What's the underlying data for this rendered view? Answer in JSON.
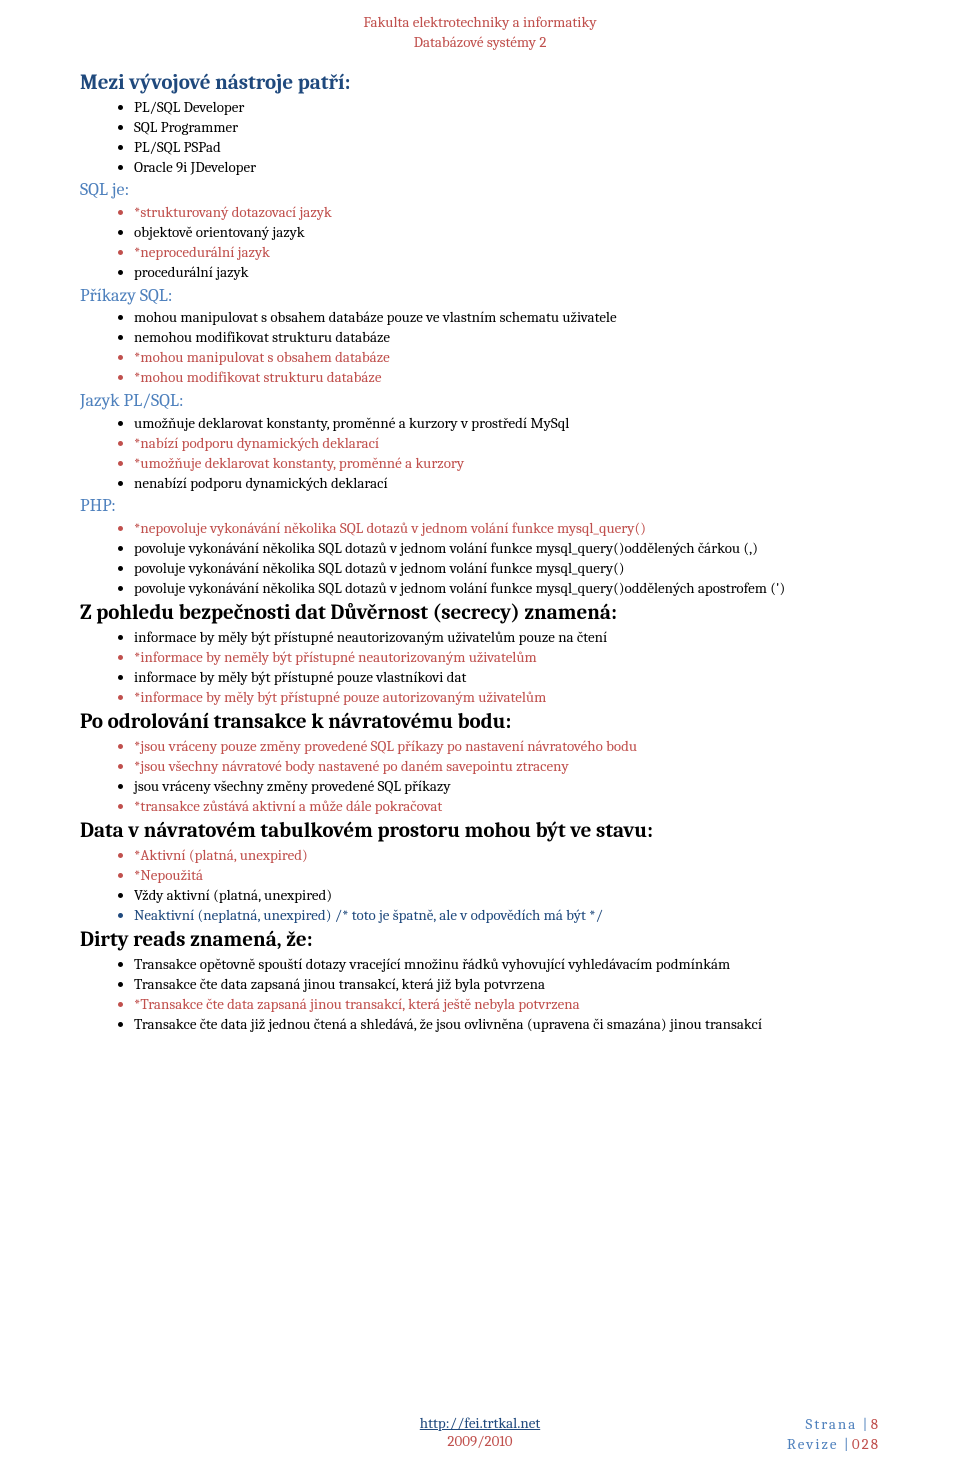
{
  "header": {
    "line1": "Fakulta elektrotechniky a informatiky",
    "line2": "Databázové systémy 2"
  },
  "colors": {
    "red": "#c0504d",
    "blue_dark": "#1f497d",
    "blue_mid": "#4f81bd",
    "text": "#000000",
    "bg": "#ffffff"
  },
  "typography": {
    "body_fontsize_pt": 11,
    "heading_fontsize_pt": 16,
    "font_family": "Cambria"
  },
  "sections": [
    {
      "id": "s1",
      "heading": "Mezi vývojové nástroje patří:",
      "style": "h-blue",
      "items": [
        {
          "text": "PL/SQL Developer",
          "cls": ""
        },
        {
          "text": "SQL Programmer",
          "cls": ""
        },
        {
          "text": "PL/SQL PSPad",
          "cls": ""
        },
        {
          "text": "Oracle 9i JDeveloper",
          "cls": ""
        }
      ]
    },
    {
      "id": "s2",
      "heading": "SQL je:",
      "style": "h-teal",
      "items": [
        {
          "text": "*strukturovaný dotazovací jazyk",
          "cls": "red"
        },
        {
          "text": "objektově orientovaný jazyk",
          "cls": ""
        },
        {
          "text": "*neprocedurální jazyk",
          "cls": "red"
        },
        {
          "text": "procedurální jazyk",
          "cls": ""
        }
      ]
    },
    {
      "id": "s3",
      "heading": "Příkazy SQL:",
      "style": "h-teal",
      "items": [
        {
          "text": "mohou manipulovat s obsahem databáze pouze ve vlastním schematu uživatele",
          "cls": ""
        },
        {
          "text": "nemohou modifikovat strukturu databáze",
          "cls": ""
        },
        {
          "text": "*mohou manipulovat s obsahem databáze",
          "cls": "red"
        },
        {
          "text": "*mohou modifikovat strukturu databáze",
          "cls": "red"
        }
      ]
    },
    {
      "id": "s4",
      "heading": "Jazyk PL/SQL:",
      "style": "h-teal",
      "items": [
        {
          "text": "umožňuje deklarovat konstanty, proměnné a kurzory v prostředí MySql",
          "cls": ""
        },
        {
          "text": "*nabízí podporu dynamických deklarací",
          "cls": "red"
        },
        {
          "text": "*umožňuje deklarovat konstanty, proměnné a kurzory",
          "cls": "red"
        },
        {
          "text": "nenabízí podporu dynamických deklarací",
          "cls": ""
        }
      ]
    },
    {
      "id": "s5",
      "heading": "PHP:",
      "style": "h-teal",
      "items": [
        {
          "text": "*nepovoluje vykonávání několika SQL dotazů v jednom volání funkce mysql_query()",
          "cls": "red"
        },
        {
          "text": "povoluje vykonávání několika SQL dotazů v jednom volání funkce mysql_query()oddělených čárkou (,)",
          "cls": ""
        },
        {
          "text": "povoluje vykonávání několika SQL dotazů v jednom volání funkce mysql_query()",
          "cls": ""
        },
        {
          "text": "povoluje vykonávání několika SQL dotazů v jednom volání funkce mysql_query()oddělených apostrofem (')",
          "cls": ""
        }
      ]
    },
    {
      "id": "s6",
      "heading": "Z pohledu bezpečnosti dat Důvěrnost (secrecy) znamená:",
      "style": "h-black",
      "items": [
        {
          "text": "informace by měly být přístupné neautorizovaným uživatelům pouze na čtení",
          "cls": ""
        },
        {
          "text": "*informace by neměly být přístupné neautorizovaným uživatelům",
          "cls": "red"
        },
        {
          "text": "informace by měly být přístupné pouze vlastníkovi dat",
          "cls": ""
        },
        {
          "text": "*informace by měly být přístupné pouze autorizovaným uživatelům",
          "cls": "red"
        }
      ]
    },
    {
      "id": "s7",
      "heading": "Po odrolování transakce k návratovému bodu:",
      "style": "h-black",
      "items": [
        {
          "text": "*jsou vráceny pouze změny provedené SQL příkazy po nastavení návratového bodu",
          "cls": "red"
        },
        {
          "text": "*jsou všechny návratové body nastavené po daném savepointu ztraceny",
          "cls": "red"
        },
        {
          "text": "jsou vráceny všechny změny provedené SQL příkazy",
          "cls": ""
        },
        {
          "text": "*transakce zůstává aktivní a může dále pokračovat",
          "cls": "red"
        }
      ]
    },
    {
      "id": "s8",
      "heading": "Data v návratovém tabulkovém prostoru mohou být ve stavu:",
      "style": "h-black",
      "items": [
        {
          "text": "*Aktivní (platná, unexpired)",
          "cls": "red"
        },
        {
          "text": "*Nepoužitá",
          "cls": "red"
        },
        {
          "text": "Vždy aktivní (platná, unexpired)",
          "cls": ""
        },
        {
          "text": "Neaktivní (neplatná, unexpired) /* toto je špatně, ale v odpovědích má být */",
          "cls": "blue"
        }
      ]
    },
    {
      "id": "s9",
      "heading": "Dirty reads znamená, že:",
      "style": "h-black",
      "items": [
        {
          "text": "Transakce opětovně spouští dotazy vracející množinu řádků vyhovující vyhledávacím podmínkám",
          "cls": ""
        },
        {
          "text": "Transakce čte data zapsaná jinou transakcí, která již byla potvrzena",
          "cls": ""
        },
        {
          "text": "*Transakce čte data zapsaná jinou transakcí, která ještě nebyla potvrzena",
          "cls": "red"
        },
        {
          "text": "Transakce čte data již jednou čtená a shledává, že jsou ovlivněna (upravena či smazána) jinou transakcí",
          "cls": ""
        }
      ]
    }
  ],
  "footer": {
    "link_text": "http://fei.trtkal.net",
    "year": "2009/2010",
    "page_label": "Strana",
    "page_num": "8",
    "rev_label": "Revize",
    "rev_num": "028"
  }
}
